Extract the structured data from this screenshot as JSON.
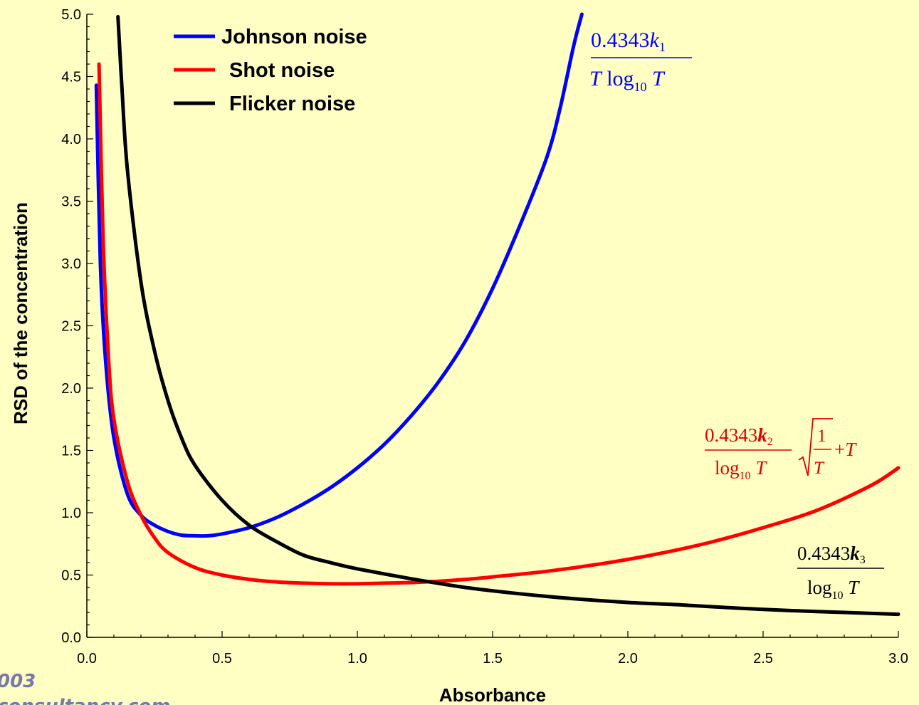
{
  "chart_data": {
    "type": "line",
    "title": "",
    "xlabel": "Absorbance",
    "ylabel": "RSD of the concentration",
    "xlim": [
      0.0,
      3.0
    ],
    "ylim": [
      0.0,
      5.0
    ],
    "xticks": [
      "0.0",
      "0.5",
      "1.0",
      "1.5",
      "2.0",
      "2.5",
      "3.0"
    ],
    "yticks": [
      "0.0",
      "0.5",
      "1.0",
      "1.5",
      "2.0",
      "2.5",
      "3.0",
      "3.5",
      "4.0",
      "4.5",
      "5.0"
    ],
    "grid": false,
    "legend_position": "top-left",
    "series": [
      {
        "name": "Johnson noise",
        "color": "#0000ff",
        "x": [
          0.035,
          0.05,
          0.07,
          0.1,
          0.15,
          0.2,
          0.25,
          0.3,
          0.35,
          0.4,
          0.45,
          0.5,
          0.6,
          0.7,
          0.8,
          0.9,
          1.0,
          1.1,
          1.2,
          1.3,
          1.4,
          1.5,
          1.6,
          1.7,
          1.75,
          1.8,
          1.83
        ],
        "y": [
          4.43,
          3.0,
          2.2,
          1.6,
          1.15,
          0.98,
          0.9,
          0.85,
          0.82,
          0.815,
          0.815,
          0.83,
          0.88,
          0.96,
          1.07,
          1.2,
          1.36,
          1.55,
          1.78,
          2.05,
          2.38,
          2.8,
          3.3,
          3.85,
          4.25,
          4.75,
          5.0
        ]
      },
      {
        "name": "Shot noise",
        "color": "#ff0000",
        "x": [
          0.045,
          0.06,
          0.08,
          0.1,
          0.15,
          0.2,
          0.25,
          0.3,
          0.4,
          0.5,
          0.6,
          0.7,
          0.8,
          0.9,
          1.0,
          1.1,
          1.2,
          1.3,
          1.4,
          1.5,
          1.7,
          1.9,
          2.1,
          2.3,
          2.5,
          2.7,
          2.9,
          3.0
        ],
        "y": [
          4.6,
          3.2,
          2.25,
          1.75,
          1.25,
          0.98,
          0.8,
          0.68,
          0.56,
          0.5,
          0.465,
          0.445,
          0.435,
          0.43,
          0.43,
          0.435,
          0.44,
          0.45,
          0.465,
          0.485,
          0.53,
          0.59,
          0.665,
          0.76,
          0.88,
          1.02,
          1.22,
          1.36
        ]
      },
      {
        "name": "Flicker noise",
        "color": "#000000",
        "x": [
          0.115,
          0.13,
          0.15,
          0.2,
          0.25,
          0.3,
          0.35,
          0.4,
          0.5,
          0.6,
          0.7,
          0.8,
          0.9,
          1.0,
          1.2,
          1.4,
          1.6,
          1.8,
          2.0,
          2.2,
          2.4,
          2.6,
          2.8,
          3.0
        ],
        "y": [
          4.98,
          4.4,
          3.75,
          2.85,
          2.3,
          1.9,
          1.6,
          1.38,
          1.1,
          0.9,
          0.77,
          0.66,
          0.6,
          0.55,
          0.47,
          0.4,
          0.35,
          0.31,
          0.28,
          0.26,
          0.235,
          0.215,
          0.2,
          0.185
        ]
      }
    ]
  },
  "watermarks": [
    "003",
    "consultancy.com"
  ]
}
